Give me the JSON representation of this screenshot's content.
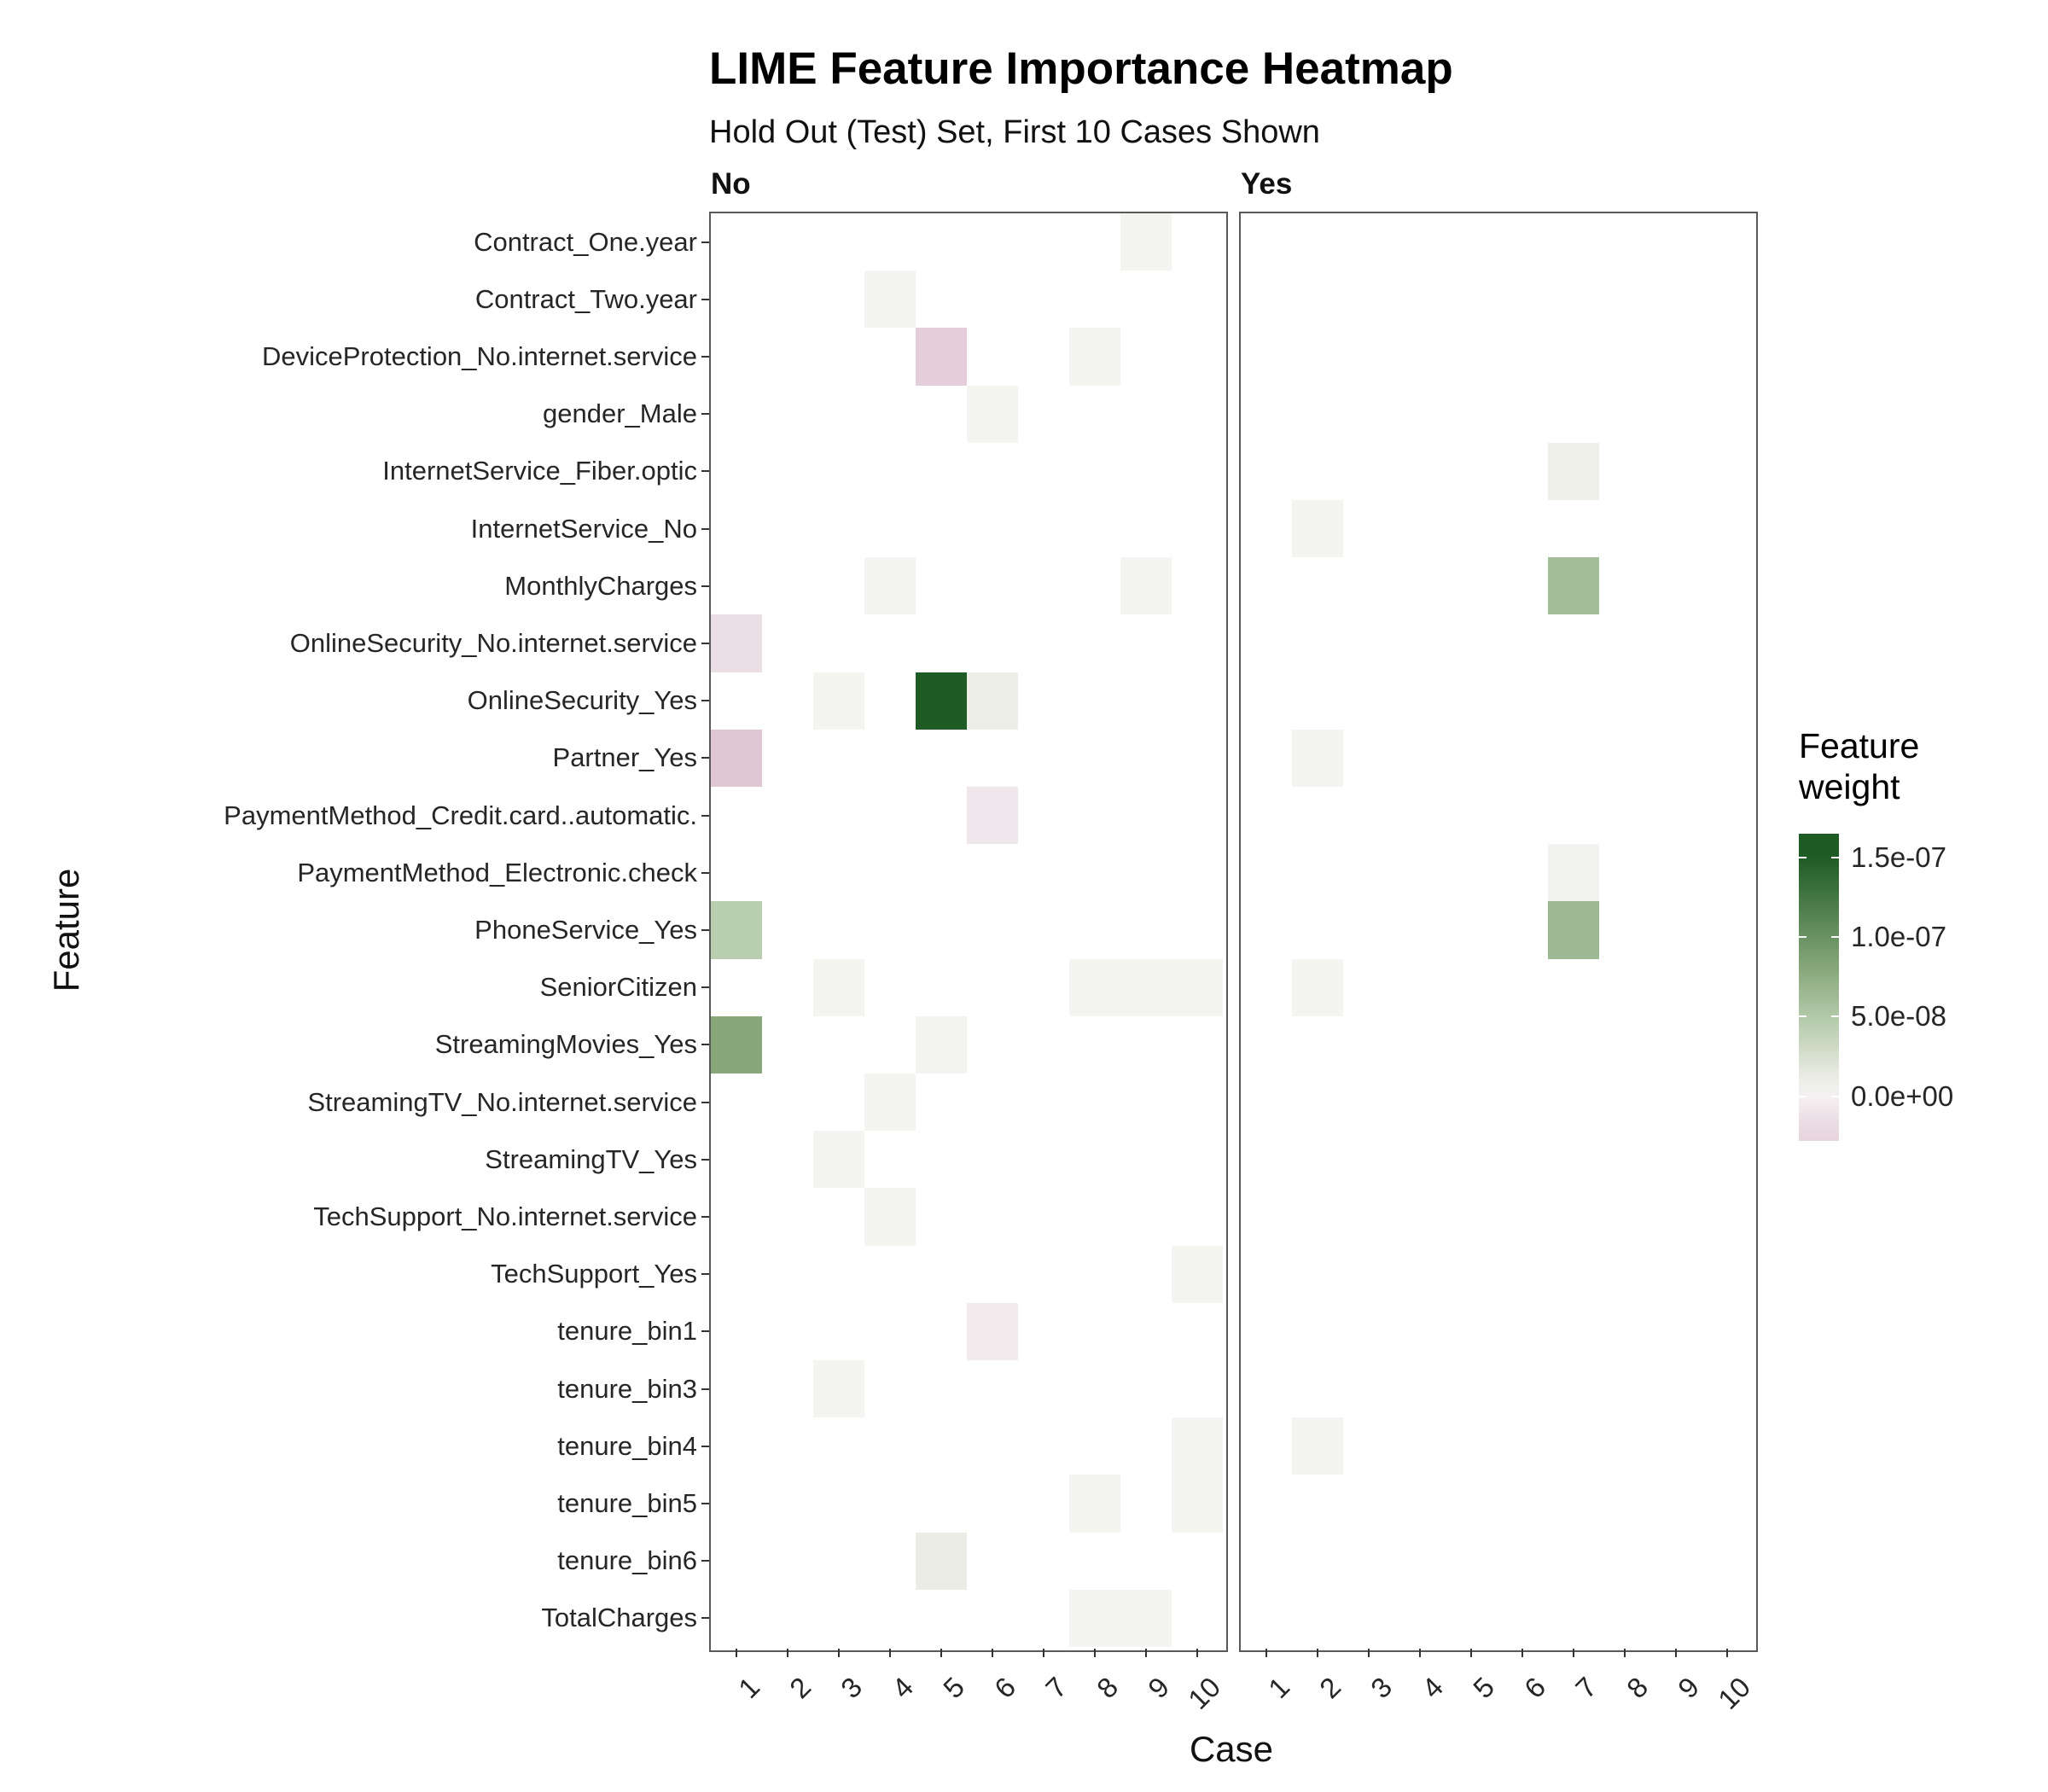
{
  "chart_data": {
    "type": "heatmap",
    "title": "LIME Feature Importance Heatmap",
    "subtitle": "Hold Out (Test) Set, First 10 Cases Shown",
    "xlabel": "Case",
    "ylabel": "Feature",
    "facets": [
      "No",
      "Yes"
    ],
    "cases": [
      1,
      2,
      3,
      4,
      5,
      6,
      7,
      8,
      9,
      10
    ],
    "features": [
      "Contract_One.year",
      "Contract_Two.year",
      "DeviceProtection_No.internet.service",
      "gender_Male",
      "InternetService_Fiber.optic",
      "InternetService_No",
      "MonthlyCharges",
      "OnlineSecurity_No.internet.service",
      "OnlineSecurity_Yes",
      "Partner_Yes",
      "PaymentMethod_Credit.card..automatic.",
      "PaymentMethod_Electronic.check",
      "PhoneService_Yes",
      "SeniorCitizen",
      "StreamingMovies_Yes",
      "StreamingTV_No.internet.service",
      "StreamingTV_Yes",
      "TechSupport_No.internet.service",
      "TechSupport_Yes",
      "tenure_bin1",
      "tenure_bin3",
      "tenure_bin4",
      "tenure_bin5",
      "tenure_bin6",
      "TotalCharges"
    ],
    "legend": {
      "title": "Feature weight",
      "ticks": [
        "1.5e-07",
        "1.0e-07",
        "5.0e-08",
        "0.0e+00"
      ],
      "tick_values": [
        1.5e-07,
        1e-07,
        5e-08,
        0
      ],
      "max": 1.65e-07,
      "min": -2.8e-08
    },
    "color_scale": {
      "positive_max": 1.5e-07,
      "positive_stops": [
        [
          0,
          "#f6f5f2"
        ],
        [
          0.08,
          "#eaece5"
        ],
        [
          0.3,
          "#b9cdaf"
        ],
        [
          0.55,
          "#84a578"
        ],
        [
          1,
          "#1e5b25"
        ]
      ],
      "negative_max": -5e-08,
      "negative_stops": [
        [
          0,
          "#f5f1f3"
        ],
        [
          0.3,
          "#ecdee5"
        ],
        [
          1,
          "#dcc2d0"
        ]
      ]
    },
    "cells": [
      {
        "facet": "No",
        "feature": "Contract_One.year",
        "case": 9,
        "weight": 2e-09
      },
      {
        "facet": "No",
        "feature": "Contract_Two.year",
        "case": 4,
        "weight": 2e-09
      },
      {
        "facet": "No",
        "feature": "DeviceProtection_No.internet.service",
        "case": 5,
        "weight": -3.5e-08
      },
      {
        "facet": "No",
        "feature": "DeviceProtection_No.internet.service",
        "case": 8,
        "weight": 2e-09
      },
      {
        "facet": "No",
        "feature": "gender_Male",
        "case": 6,
        "weight": 2e-09
      },
      {
        "facet": "No",
        "feature": "MonthlyCharges",
        "case": 4,
        "weight": 2e-09
      },
      {
        "facet": "No",
        "feature": "MonthlyCharges",
        "case": 9,
        "weight": 2e-09
      },
      {
        "facet": "No",
        "feature": "OnlineSecurity_No.internet.service",
        "case": 1,
        "weight": -1.5e-08
      },
      {
        "facet": "No",
        "feature": "OnlineSecurity_Yes",
        "case": 3,
        "weight": 2e-09
      },
      {
        "facet": "No",
        "feature": "OnlineSecurity_Yes",
        "case": 5,
        "weight": 1.5e-07
      },
      {
        "facet": "No",
        "feature": "OnlineSecurity_Yes",
        "case": 6,
        "weight": 1e-08
      },
      {
        "facet": "No",
        "feature": "Partner_Yes",
        "case": 1,
        "weight": -4.5e-08
      },
      {
        "facet": "No",
        "feature": "PaymentMethod_Credit.card..automatic.",
        "case": 6,
        "weight": -8e-09
      },
      {
        "facet": "No",
        "feature": "PhoneService_Yes",
        "case": 1,
        "weight": 4.5e-08
      },
      {
        "facet": "No",
        "feature": "SeniorCitizen",
        "case": 3,
        "weight": 2e-09
      },
      {
        "facet": "No",
        "feature": "SeniorCitizen",
        "case": 8,
        "weight": 2e-09
      },
      {
        "facet": "No",
        "feature": "SeniorCitizen",
        "case": 9,
        "weight": 2e-09
      },
      {
        "facet": "No",
        "feature": "SeniorCitizen",
        "case": 10,
        "weight": 2e-09
      },
      {
        "facet": "No",
        "feature": "StreamingMovies_Yes",
        "case": 1,
        "weight": 8e-08
      },
      {
        "facet": "No",
        "feature": "StreamingMovies_Yes",
        "case": 5,
        "weight": 3e-09
      },
      {
        "facet": "No",
        "feature": "StreamingTV_No.internet.service",
        "case": 4,
        "weight": 2e-09
      },
      {
        "facet": "No",
        "feature": "StreamingTV_Yes",
        "case": 3,
        "weight": 2e-09
      },
      {
        "facet": "No",
        "feature": "TechSupport_No.internet.service",
        "case": 4,
        "weight": 2e-09
      },
      {
        "facet": "No",
        "feature": "TechSupport_Yes",
        "case": 10,
        "weight": 2e-09
      },
      {
        "facet": "No",
        "feature": "tenure_bin1",
        "case": 6,
        "weight": -5e-09
      },
      {
        "facet": "No",
        "feature": "tenure_bin3",
        "case": 3,
        "weight": 2e-09
      },
      {
        "facet": "No",
        "feature": "tenure_bin4",
        "case": 10,
        "weight": 2e-09
      },
      {
        "facet": "No",
        "feature": "tenure_bin5",
        "case": 8,
        "weight": 2e-09
      },
      {
        "facet": "No",
        "feature": "tenure_bin5",
        "case": 10,
        "weight": 2e-09
      },
      {
        "facet": "No",
        "feature": "tenure_bin6",
        "case": 5,
        "weight": 1.2e-08
      },
      {
        "facet": "No",
        "feature": "TotalCharges",
        "case": 8,
        "weight": 2e-09
      },
      {
        "facet": "No",
        "feature": "TotalCharges",
        "case": 9,
        "weight": 2e-09
      },
      {
        "facet": "Yes",
        "feature": "InternetService_Fiber.optic",
        "case": 7,
        "weight": 8e-09
      },
      {
        "facet": "Yes",
        "feature": "InternetService_No",
        "case": 2,
        "weight": 2e-09
      },
      {
        "facet": "Yes",
        "feature": "MonthlyCharges",
        "case": 7,
        "weight": 6e-08
      },
      {
        "facet": "Yes",
        "feature": "Partner_Yes",
        "case": 2,
        "weight": 2e-09
      },
      {
        "facet": "Yes",
        "feature": "PaymentMethod_Electronic.check",
        "case": 7,
        "weight": 4e-09
      },
      {
        "facet": "Yes",
        "feature": "PhoneService_Yes",
        "case": 7,
        "weight": 6.5e-08
      },
      {
        "facet": "Yes",
        "feature": "SeniorCitizen",
        "case": 2,
        "weight": 2e-09
      },
      {
        "facet": "Yes",
        "feature": "tenure_bin4",
        "case": 2,
        "weight": 2e-09
      }
    ]
  }
}
